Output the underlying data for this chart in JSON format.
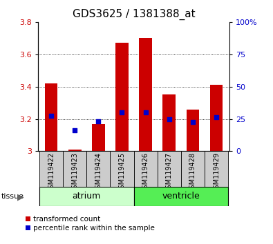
{
  "title": "GDS3625 / 1381388_at",
  "samples": [
    "GSM119422",
    "GSM119423",
    "GSM119424",
    "GSM119425",
    "GSM119426",
    "GSM119427",
    "GSM119428",
    "GSM119429"
  ],
  "transformed_count": [
    3.42,
    3.01,
    3.17,
    3.67,
    3.7,
    3.35,
    3.26,
    3.41
  ],
  "percentile_rank_left": [
    3.22,
    3.13,
    3.185,
    3.24,
    3.24,
    3.2,
    3.18,
    3.21
  ],
  "ylim_left": [
    3.0,
    3.8
  ],
  "ylim_right": [
    0,
    100
  ],
  "yticks_left": [
    3.0,
    3.2,
    3.4,
    3.6,
    3.8
  ],
  "yticks_right": [
    0,
    25,
    50,
    75,
    100
  ],
  "ytick_labels_left": [
    "3",
    "3.2",
    "3.4",
    "3.6",
    "3.8"
  ],
  "ytick_labels_right": [
    "0",
    "25",
    "50",
    "75",
    "100%"
  ],
  "bar_color": "#cc0000",
  "dot_color": "#0000cc",
  "bar_bottom": 3.0,
  "tissue_colors_atrium": "#ccffcc",
  "tissue_colors_ventricle": "#55ee55",
  "sample_bg_color": "#cccccc",
  "legend_red_label": "transformed count",
  "legend_blue_label": "percentile rank within the sample",
  "title_fontsize": 11,
  "tick_fontsize": 8,
  "sample_fontsize": 7,
  "legend_fontsize": 7.5,
  "tissue_fontsize": 9
}
